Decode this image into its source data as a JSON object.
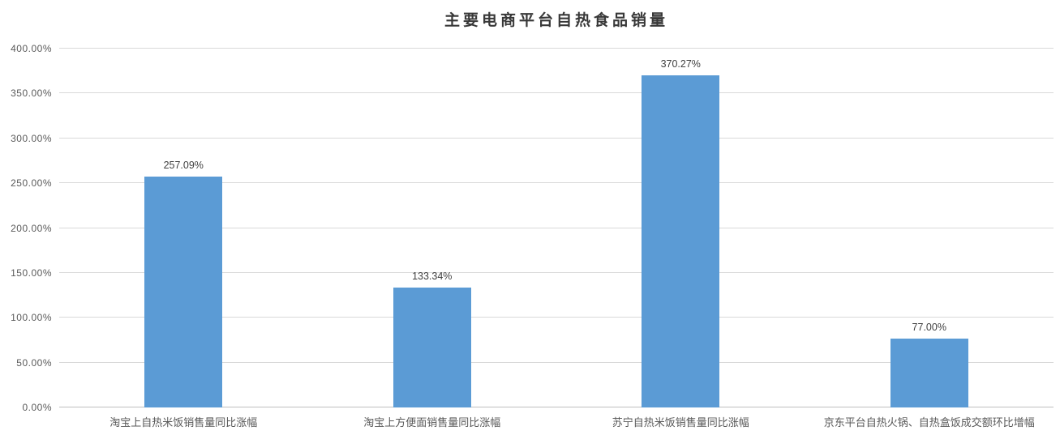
{
  "chart_data": {
    "type": "bar",
    "title": "主要电商平台自热食品销量",
    "categories": [
      "淘宝上自热米饭销售量同比涨幅",
      "淘宝上方便面销售量同比涨幅",
      "苏宁自热米饭销售量同比涨幅",
      "京东平台自热火锅、自热盒饭成交额环比增幅"
    ],
    "values": [
      257.09,
      133.34,
      370.27,
      77.0
    ],
    "value_labels": [
      "257.09%",
      "133.34%",
      "370.27%",
      "77.00%"
    ],
    "y_ticks": [
      "0.00%",
      "50.00%",
      "100.00%",
      "150.00%",
      "200.00%",
      "250.00%",
      "300.00%",
      "350.00%",
      "400.00%"
    ],
    "ylim": [
      0,
      400
    ],
    "xlabel": "",
    "ylabel": "",
    "grid": "horizontal",
    "legend": "none",
    "colors": {
      "bar": "#5B9BD5",
      "gridline": "#D9D9D9",
      "axis_line": "#BFBFBF",
      "tick_label": "#595959",
      "category_label": "#595959",
      "data_label": "#404040",
      "title": "#383838"
    }
  }
}
